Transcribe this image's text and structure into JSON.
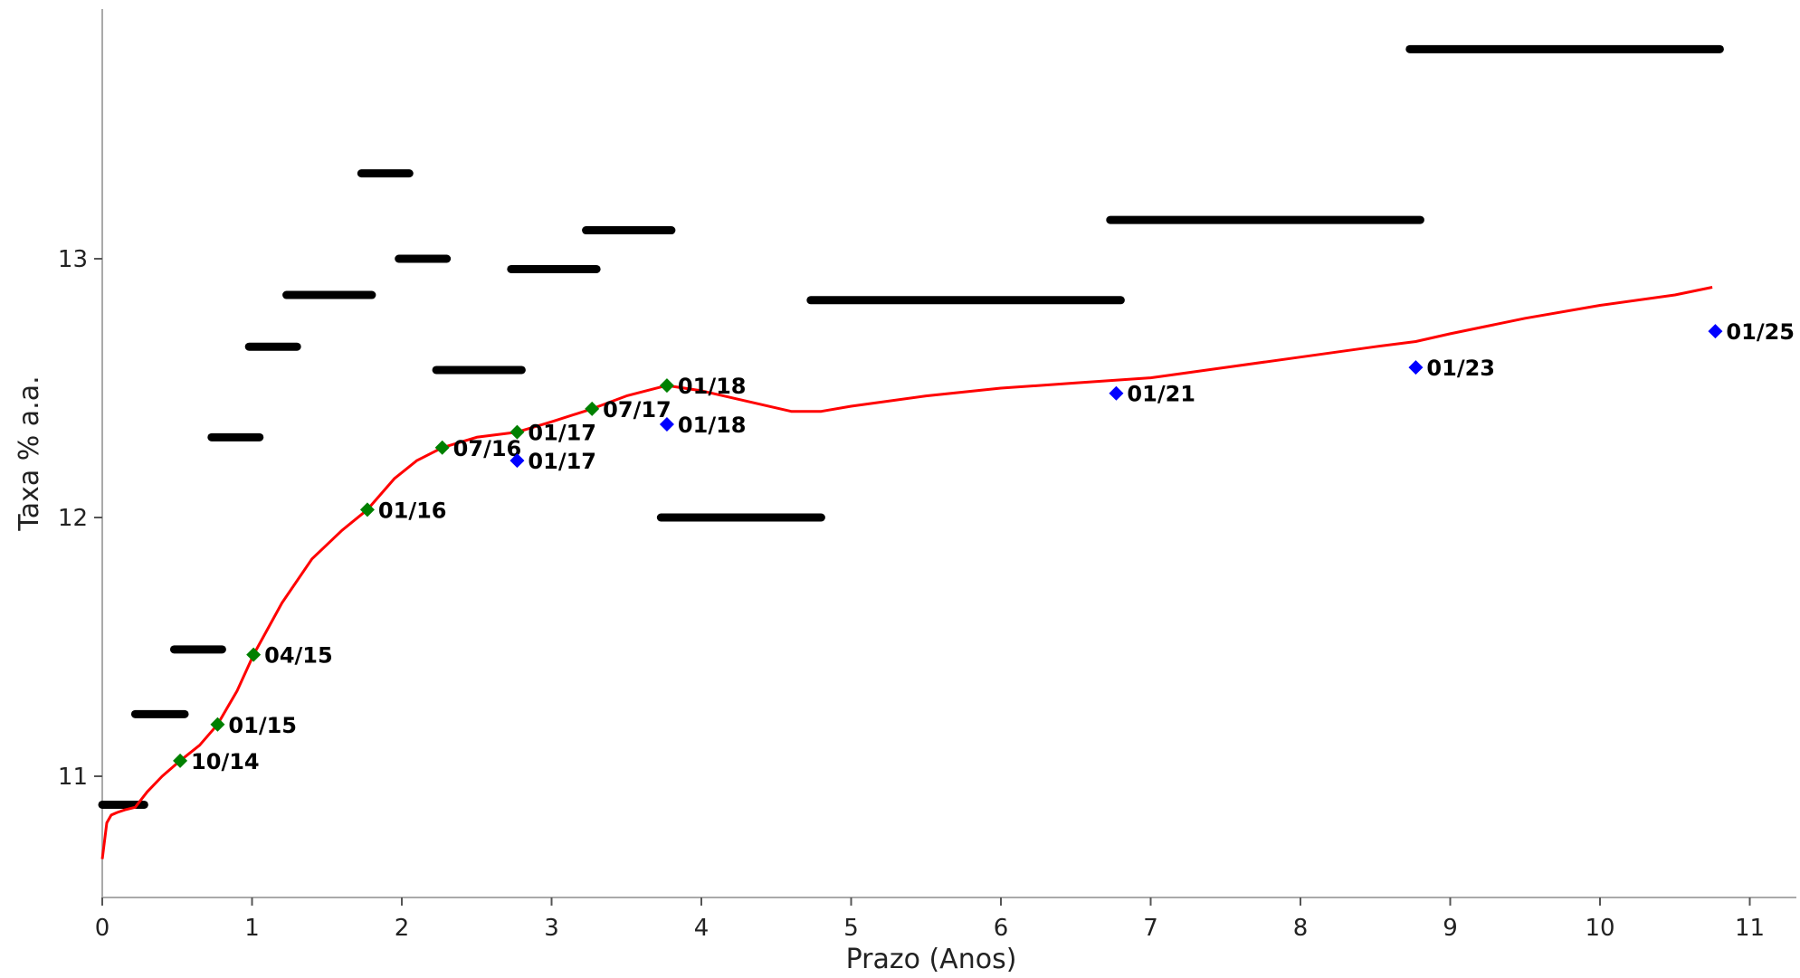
{
  "chart_data": {
    "type": "line",
    "xlabel": "Prazo (Anos)",
    "ylabel": "Taxa % a.a.",
    "xlim": [
      0,
      11.35
    ],
    "ylim": [
      10.56,
      13.98
    ],
    "x_ticks": [
      0,
      1,
      2,
      3,
      4,
      5,
      6,
      7,
      8,
      9,
      10,
      11
    ],
    "y_ticks": [
      11,
      12,
      13
    ],
    "colors": {
      "curve": "#ff0000",
      "green_points": "#008000",
      "blue_points": "#0000ff",
      "segments": "#000000",
      "axis": "#aaaaaa"
    },
    "curve": {
      "x": [
        0,
        0.03,
        0.06,
        0.1,
        0.15,
        0.22,
        0.3,
        0.4,
        0.52,
        0.65,
        0.77,
        0.9,
        1.01,
        1.2,
        1.4,
        1.6,
        1.77,
        1.95,
        2.1,
        2.27,
        2.5,
        2.77,
        3.0,
        3.27,
        3.5,
        3.77,
        4.0,
        4.3,
        4.6,
        4.8,
        5.0,
        5.5,
        6.0,
        6.5,
        7.0,
        7.5,
        8.0,
        8.5,
        8.77,
        9.0,
        9.5,
        10.0,
        10.5,
        10.75
      ],
      "y": [
        10.68,
        10.82,
        10.85,
        10.86,
        10.87,
        10.88,
        10.94,
        11.0,
        11.06,
        11.12,
        11.2,
        11.33,
        11.47,
        11.67,
        11.84,
        11.95,
        12.03,
        12.15,
        12.22,
        12.27,
        12.31,
        12.33,
        12.37,
        12.42,
        12.47,
        12.51,
        12.49,
        12.45,
        12.41,
        12.41,
        12.43,
        12.47,
        12.5,
        12.52,
        12.54,
        12.58,
        12.62,
        12.66,
        12.68,
        12.71,
        12.77,
        12.82,
        12.86,
        12.89
      ]
    },
    "segments": [
      {
        "x1": 0.0,
        "x2": 0.28,
        "y": 10.89
      },
      {
        "x1": 0.22,
        "x2": 0.55,
        "y": 11.24
      },
      {
        "x1": 0.48,
        "x2": 0.8,
        "y": 11.49
      },
      {
        "x1": 0.73,
        "x2": 1.05,
        "y": 12.31
      },
      {
        "x1": 0.98,
        "x2": 1.3,
        "y": 12.66
      },
      {
        "x1": 1.23,
        "x2": 1.8,
        "y": 12.86
      },
      {
        "x1": 1.73,
        "x2": 2.05,
        "y": 13.33
      },
      {
        "x1": 1.98,
        "x2": 2.3,
        "y": 13.0
      },
      {
        "x1": 2.23,
        "x2": 2.8,
        "y": 12.57
      },
      {
        "x1": 2.73,
        "x2": 3.3,
        "y": 12.96
      },
      {
        "x1": 3.23,
        "x2": 3.8,
        "y": 13.11
      },
      {
        "x1": 3.73,
        "x2": 4.8,
        "y": 12.0
      },
      {
        "x1": 4.73,
        "x2": 6.8,
        "y": 12.84
      },
      {
        "x1": 6.73,
        "x2": 8.8,
        "y": 13.15
      },
      {
        "x1": 8.73,
        "x2": 10.8,
        "y": 13.81
      }
    ],
    "green_points": [
      {
        "x": 0.52,
        "y": 11.06,
        "label": "10/14"
      },
      {
        "x": 0.77,
        "y": 11.2,
        "label": "01/15"
      },
      {
        "x": 1.01,
        "y": 11.47,
        "label": "04/15"
      },
      {
        "x": 1.77,
        "y": 12.03,
        "label": "01/16"
      },
      {
        "x": 2.27,
        "y": 12.27,
        "label": "07/16"
      },
      {
        "x": 2.77,
        "y": 12.33,
        "label": "01/17"
      },
      {
        "x": 3.27,
        "y": 12.42,
        "label": "07/17"
      },
      {
        "x": 3.77,
        "y": 12.51,
        "label": "01/18"
      }
    ],
    "blue_points": [
      {
        "x": 2.77,
        "y": 12.22,
        "label": "01/17"
      },
      {
        "x": 3.77,
        "y": 12.36,
        "label": "01/18"
      },
      {
        "x": 6.77,
        "y": 12.48,
        "label": "01/21"
      },
      {
        "x": 8.77,
        "y": 12.58,
        "label": "01/23"
      },
      {
        "x": 10.77,
        "y": 12.72,
        "label": "01/25"
      }
    ]
  }
}
